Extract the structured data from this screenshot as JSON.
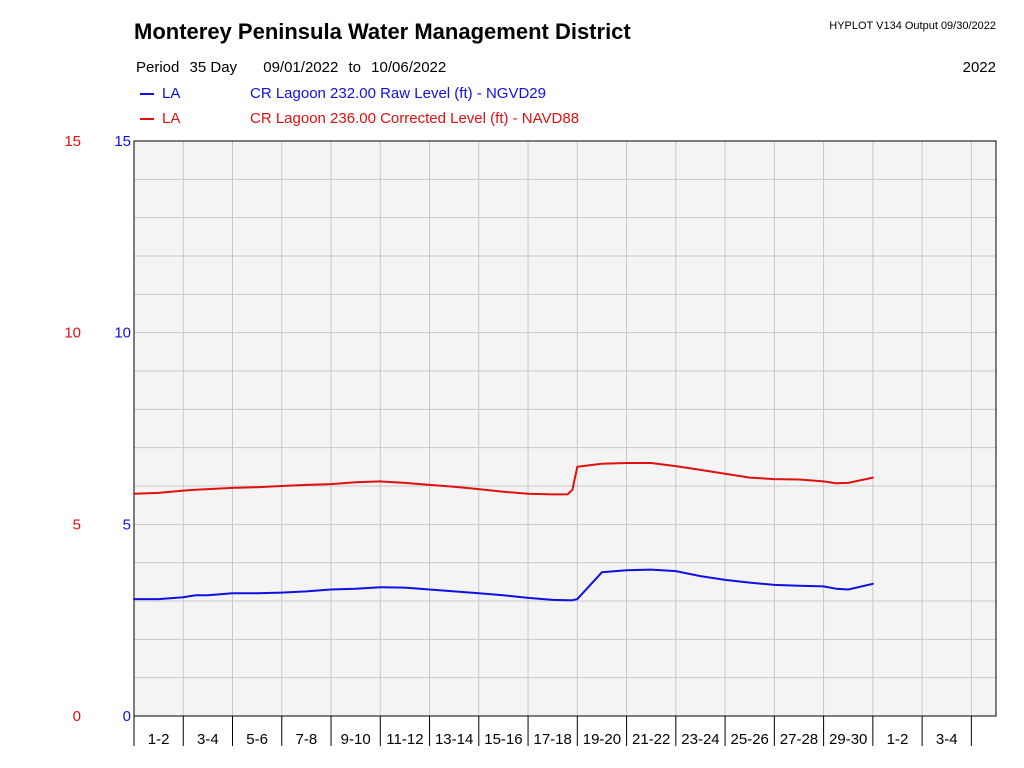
{
  "header": {
    "title": "Monterey Peninsula Water Management District",
    "version": "HYPLOT V134  Output 09/30/2022",
    "period_label": "Period",
    "period_length": "35 Day",
    "start_date": "09/01/2022",
    "to_label": "to",
    "end_date": "10/06/2022",
    "year": "2022"
  },
  "colors": {
    "raw": "#1010e0",
    "corrected": "#e01010",
    "grid": "#c8c8c8",
    "plot_bg": "#f4f4f4"
  },
  "legend": [
    {
      "code": "LA",
      "description": "CR Lagoon  232.00 Raw Level (ft) - NGVD29",
      "color": "#1010e0"
    },
    {
      "code": "LA",
      "description": "CR Lagoon  236.00 Corrected Level (ft) - NAVD88",
      "color": "#e01010"
    }
  ],
  "chart_data": {
    "type": "line",
    "x_tick_labels": [
      "1-2",
      "3-4",
      "5-6",
      "7-8",
      "9-10",
      "11-12",
      "13-14",
      "15-16",
      "17-18",
      "19-20",
      "21-22",
      "23-24",
      "25-26",
      "27-28",
      "29-30",
      "1-2",
      "3-4"
    ],
    "xlim": [
      0,
      35
    ],
    "ylim": [
      0,
      15
    ],
    "y_ticks_left": [
      "0",
      "5",
      "10",
      "15"
    ],
    "y_ticks_right": [
      "0",
      "5",
      "10",
      "15"
    ],
    "grid": true,
    "series": [
      {
        "name": "CR Lagoon  232.00 Raw Level (ft) - NGVD29",
        "color": "#1010e0",
        "x": [
          0,
          1,
          2,
          2.5,
          3,
          4,
          5,
          6,
          7,
          8,
          9,
          10,
          11,
          12,
          13,
          14,
          15,
          16,
          17,
          17.6,
          17.8,
          18,
          19,
          20,
          21,
          22,
          23,
          24,
          25,
          26,
          27,
          28,
          28.5,
          29,
          30
        ],
        "y": [
          3.05,
          3.05,
          3.1,
          3.15,
          3.15,
          3.2,
          3.2,
          3.22,
          3.25,
          3.3,
          3.32,
          3.36,
          3.35,
          3.3,
          3.25,
          3.2,
          3.15,
          3.08,
          3.03,
          3.02,
          3.02,
          3.05,
          3.75,
          3.8,
          3.82,
          3.78,
          3.65,
          3.55,
          3.48,
          3.42,
          3.4,
          3.38,
          3.32,
          3.3,
          3.45
        ]
      },
      {
        "name": "CR Lagoon  236.00 Corrected Level (ft) - NAVD88",
        "color": "#e01010",
        "x": [
          0,
          1,
          2,
          2.5,
          3,
          4,
          5,
          6,
          7,
          8,
          9,
          10,
          11,
          12,
          13,
          14,
          15,
          16,
          17,
          17.6,
          17.8,
          18,
          19,
          20,
          21,
          22,
          23,
          24,
          25,
          26,
          27,
          28,
          28.5,
          29,
          30
        ],
        "y": [
          5.8,
          5.82,
          5.88,
          5.9,
          5.92,
          5.95,
          5.97,
          6.0,
          6.03,
          6.05,
          6.1,
          6.12,
          6.08,
          6.03,
          5.98,
          5.92,
          5.85,
          5.8,
          5.78,
          5.78,
          5.9,
          6.5,
          6.58,
          6.6,
          6.6,
          6.52,
          6.42,
          6.32,
          6.22,
          6.18,
          6.17,
          6.12,
          6.07,
          6.08,
          6.22
        ]
      }
    ]
  }
}
